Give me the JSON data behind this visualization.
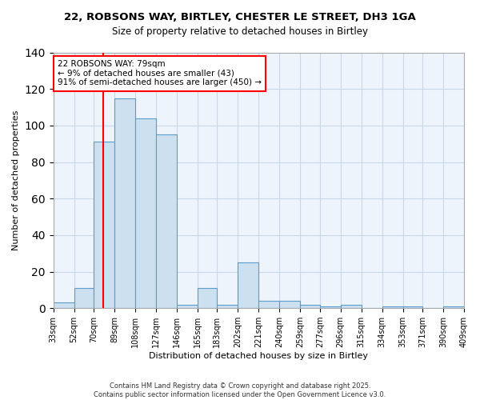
{
  "title_line1": "22, ROBSONS WAY, BIRTLEY, CHESTER LE STREET, DH3 1GA",
  "title_line2": "Size of property relative to detached houses in Birtley",
  "xlabel": "Distribution of detached houses by size in Birtley",
  "ylabel": "Number of detached properties",
  "bar_color": "#cce0f0",
  "bar_edge_color": "#5b9dc9",
  "grid_color": "#c8d8e8",
  "background_color": "#eef4fb",
  "red_line_x": 79,
  "annotation_text": "22 ROBSONS WAY: 79sqm\n← 9% of detached houses are smaller (43)\n91% of semi-detached houses are larger (450) →",
  "annotation_box_color": "white",
  "annotation_border_color": "red",
  "bins": [
    33,
    52,
    70,
    89,
    108,
    127,
    146,
    165,
    183,
    202,
    221,
    240,
    259,
    277,
    296,
    315,
    334,
    353,
    371,
    390,
    409
  ],
  "bin_labels": [
    "33sqm",
    "52sqm",
    "70sqm",
    "89sqm",
    "108sqm",
    "127sqm",
    "146sqm",
    "165sqm",
    "183sqm",
    "202sqm",
    "221sqm",
    "240sqm",
    "259sqm",
    "277sqm",
    "296sqm",
    "315sqm",
    "334sqm",
    "353sqm",
    "371sqm",
    "390sqm",
    "409sqm"
  ],
  "counts": [
    3,
    11,
    91,
    115,
    104,
    95,
    2,
    11,
    2,
    25,
    4,
    4,
    2,
    1,
    2,
    0,
    1,
    1,
    0,
    1,
    0
  ],
  "ylim": [
    0,
    140
  ],
  "yticks": [
    0,
    20,
    40,
    60,
    80,
    100,
    120,
    140
  ],
  "footer_line1": "Contains HM Land Registry data © Crown copyright and database right 2025.",
  "footer_line2": "Contains public sector information licensed under the Open Government Licence v3.0."
}
